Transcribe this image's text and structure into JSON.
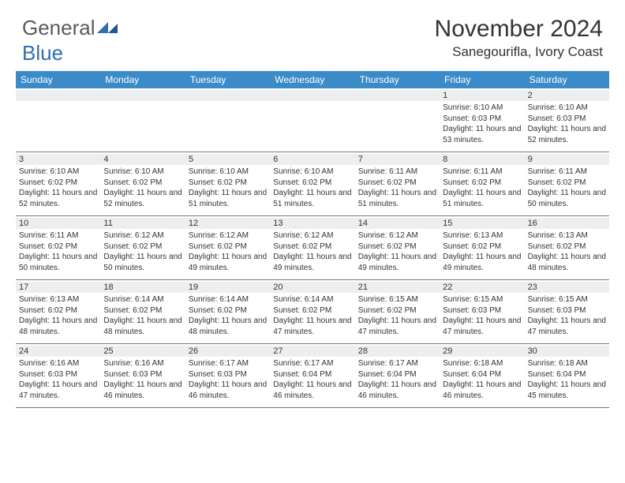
{
  "brand": {
    "part1": "General",
    "part2": "Blue"
  },
  "title": "November 2024",
  "location": "Sanegourifla, Ivory Coast",
  "colors": {
    "header_bg": "#3b8bc9",
    "band_bg": "#eceff2",
    "text": "#333333",
    "brand_blue": "#2f6fb0",
    "rule": "#7a7a7a"
  },
  "day_headers": [
    "Sunday",
    "Monday",
    "Tuesday",
    "Wednesday",
    "Thursday",
    "Friday",
    "Saturday"
  ],
  "weeks": [
    [
      null,
      null,
      null,
      null,
      null,
      {
        "n": "1",
        "sr": "6:10 AM",
        "ss": "6:03 PM",
        "dl": "11 hours and 53 minutes."
      },
      {
        "n": "2",
        "sr": "6:10 AM",
        "ss": "6:03 PM",
        "dl": "11 hours and 52 minutes."
      }
    ],
    [
      {
        "n": "3",
        "sr": "6:10 AM",
        "ss": "6:02 PM",
        "dl": "11 hours and 52 minutes."
      },
      {
        "n": "4",
        "sr": "6:10 AM",
        "ss": "6:02 PM",
        "dl": "11 hours and 52 minutes."
      },
      {
        "n": "5",
        "sr": "6:10 AM",
        "ss": "6:02 PM",
        "dl": "11 hours and 51 minutes."
      },
      {
        "n": "6",
        "sr": "6:10 AM",
        "ss": "6:02 PM",
        "dl": "11 hours and 51 minutes."
      },
      {
        "n": "7",
        "sr": "6:11 AM",
        "ss": "6:02 PM",
        "dl": "11 hours and 51 minutes."
      },
      {
        "n": "8",
        "sr": "6:11 AM",
        "ss": "6:02 PM",
        "dl": "11 hours and 51 minutes."
      },
      {
        "n": "9",
        "sr": "6:11 AM",
        "ss": "6:02 PM",
        "dl": "11 hours and 50 minutes."
      }
    ],
    [
      {
        "n": "10",
        "sr": "6:11 AM",
        "ss": "6:02 PM",
        "dl": "11 hours and 50 minutes."
      },
      {
        "n": "11",
        "sr": "6:12 AM",
        "ss": "6:02 PM",
        "dl": "11 hours and 50 minutes."
      },
      {
        "n": "12",
        "sr": "6:12 AM",
        "ss": "6:02 PM",
        "dl": "11 hours and 49 minutes."
      },
      {
        "n": "13",
        "sr": "6:12 AM",
        "ss": "6:02 PM",
        "dl": "11 hours and 49 minutes."
      },
      {
        "n": "14",
        "sr": "6:12 AM",
        "ss": "6:02 PM",
        "dl": "11 hours and 49 minutes."
      },
      {
        "n": "15",
        "sr": "6:13 AM",
        "ss": "6:02 PM",
        "dl": "11 hours and 49 minutes."
      },
      {
        "n": "16",
        "sr": "6:13 AM",
        "ss": "6:02 PM",
        "dl": "11 hours and 48 minutes."
      }
    ],
    [
      {
        "n": "17",
        "sr": "6:13 AM",
        "ss": "6:02 PM",
        "dl": "11 hours and 48 minutes."
      },
      {
        "n": "18",
        "sr": "6:14 AM",
        "ss": "6:02 PM",
        "dl": "11 hours and 48 minutes."
      },
      {
        "n": "19",
        "sr": "6:14 AM",
        "ss": "6:02 PM",
        "dl": "11 hours and 48 minutes."
      },
      {
        "n": "20",
        "sr": "6:14 AM",
        "ss": "6:02 PM",
        "dl": "11 hours and 47 minutes."
      },
      {
        "n": "21",
        "sr": "6:15 AM",
        "ss": "6:02 PM",
        "dl": "11 hours and 47 minutes."
      },
      {
        "n": "22",
        "sr": "6:15 AM",
        "ss": "6:03 PM",
        "dl": "11 hours and 47 minutes."
      },
      {
        "n": "23",
        "sr": "6:15 AM",
        "ss": "6:03 PM",
        "dl": "11 hours and 47 minutes."
      }
    ],
    [
      {
        "n": "24",
        "sr": "6:16 AM",
        "ss": "6:03 PM",
        "dl": "11 hours and 47 minutes."
      },
      {
        "n": "25",
        "sr": "6:16 AM",
        "ss": "6:03 PM",
        "dl": "11 hours and 46 minutes."
      },
      {
        "n": "26",
        "sr": "6:17 AM",
        "ss": "6:03 PM",
        "dl": "11 hours and 46 minutes."
      },
      {
        "n": "27",
        "sr": "6:17 AM",
        "ss": "6:04 PM",
        "dl": "11 hours and 46 minutes."
      },
      {
        "n": "28",
        "sr": "6:17 AM",
        "ss": "6:04 PM",
        "dl": "11 hours and 46 minutes."
      },
      {
        "n": "29",
        "sr": "6:18 AM",
        "ss": "6:04 PM",
        "dl": "11 hours and 46 minutes."
      },
      {
        "n": "30",
        "sr": "6:18 AM",
        "ss": "6:04 PM",
        "dl": "11 hours and 45 minutes."
      }
    ]
  ],
  "labels": {
    "sunrise": "Sunrise:",
    "sunset": "Sunset:",
    "daylight": "Daylight:"
  }
}
